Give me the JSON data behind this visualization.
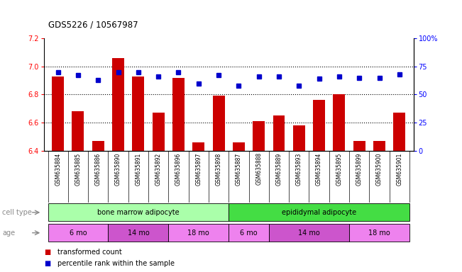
{
  "title": "GDS5226 / 10567987",
  "samples": [
    "GSM635884",
    "GSM635885",
    "GSM635886",
    "GSM635890",
    "GSM635891",
    "GSM635892",
    "GSM635896",
    "GSM635897",
    "GSM635898",
    "GSM635887",
    "GSM635888",
    "GSM635889",
    "GSM635893",
    "GSM635894",
    "GSM635895",
    "GSM635899",
    "GSM635900",
    "GSM635901"
  ],
  "red_values": [
    6.93,
    6.68,
    6.47,
    7.06,
    6.93,
    6.67,
    6.92,
    6.46,
    6.79,
    6.46,
    6.61,
    6.65,
    6.58,
    6.76,
    6.8,
    6.47,
    6.47,
    6.67
  ],
  "blue_percentiles": [
    70,
    67,
    63,
    70,
    70,
    66,
    70,
    60,
    67,
    58,
    66,
    66,
    58,
    64,
    66,
    65,
    65,
    68
  ],
  "ylim": [
    6.4,
    7.2
  ],
  "yticks": [
    6.4,
    6.6,
    6.8,
    7.0,
    7.2
  ],
  "right_yticks": [
    0,
    25,
    50,
    75,
    100
  ],
  "right_ylim": [
    0,
    100
  ],
  "cell_type_groups": [
    {
      "label": "bone marrow adipocyte",
      "start": 0,
      "end": 9,
      "color": "#aaffaa"
    },
    {
      "label": "epididymal adipocyte",
      "start": 9,
      "end": 18,
      "color": "#44dd44"
    }
  ],
  "age_groups": [
    {
      "label": "6 mo",
      "start": 0,
      "end": 3,
      "color": "#ee82ee"
    },
    {
      "label": "14 mo",
      "start": 3,
      "end": 6,
      "color": "#cc55cc"
    },
    {
      "label": "18 mo",
      "start": 6,
      "end": 9,
      "color": "#ee82ee"
    },
    {
      "label": "6 mo",
      "start": 9,
      "end": 11,
      "color": "#ee82ee"
    },
    {
      "label": "14 mo",
      "start": 11,
      "end": 15,
      "color": "#cc55cc"
    },
    {
      "label": "18 mo",
      "start": 15,
      "end": 18,
      "color": "#ee82ee"
    }
  ],
  "red_color": "#cc0000",
  "blue_color": "#0000cc",
  "background_color": "#ffffff",
  "plot_bg_color": "#ffffff",
  "xtick_bg_color": "#cccccc",
  "cell_type_label": "cell type",
  "age_label": "age",
  "legend_red": "transformed count",
  "legend_blue": "percentile rank within the sample"
}
